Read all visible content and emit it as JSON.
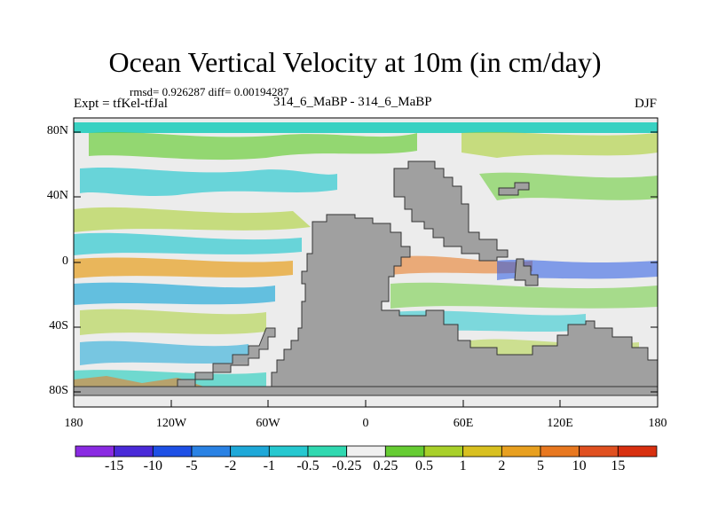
{
  "title": "Ocean Vertical Velocity at 10m (in cm/day)",
  "stats": "rmsd= 0.926287 diff= 0.00194287",
  "experiment": "Expt = tfKel-tfJal",
  "center_label": "314_6_MaBP - 314_6_MaBP",
  "season": "DJF",
  "chart_data": {
    "type": "heatmap",
    "y_ticks": [
      "80N",
      "40N",
      "0",
      "40S",
      "80S"
    ],
    "x_ticks": [
      "180",
      "120W",
      "60W",
      "0",
      "60E",
      "120E",
      "180"
    ],
    "colorbar": {
      "labels": [
        "-15",
        "-10",
        "-5",
        "-2",
        "-1",
        "-0.5",
        "-0.25",
        "0.25",
        "0.5",
        "1",
        "2",
        "5",
        "10",
        "15"
      ],
      "colors": [
        "#8a2be2",
        "#4a2ad8",
        "#1e50e6",
        "#2a82e4",
        "#1ea8d8",
        "#26c8d0",
        "#30d8b0",
        "#f0f0f0",
        "#66cc33",
        "#a8d02a",
        "#d8c020",
        "#e8a020",
        "#e87820",
        "#e05020",
        "#d83010"
      ]
    },
    "land_color": "#a0a0a0",
    "ocean_neutral_color": "#ececec"
  }
}
